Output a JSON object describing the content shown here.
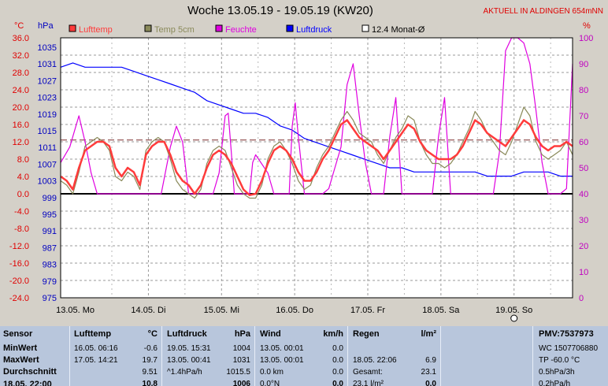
{
  "title": "Woche 13.05.19 - 19.05.19 (KW20)",
  "station": "AKTUELL IN ALDINGEN 654mNN",
  "axis_units": {
    "left_temp": "°C",
    "left_pressure": "hPa",
    "right_humidity": "%"
  },
  "legend": [
    {
      "label": "Lufttemp",
      "color": "#ff3b3b"
    },
    {
      "label": "Temp 5cm",
      "color": "#8a8a5a"
    },
    {
      "label": "Feuchte",
      "color": "#e000e0"
    },
    {
      "label": "Luftdruck",
      "color": "#0000ff"
    },
    {
      "label": "12.4 Monat-Ø",
      "color": "#ffffff"
    }
  ],
  "chart_data": {
    "type": "line",
    "title": "Woche 13.05.19 - 19.05.19 (KW20)",
    "x_ticks": [
      "13.05. Mo",
      "14.05. Di",
      "15.05. Mi",
      "16.05. Do",
      "17.05. Fr",
      "18.05. Sa",
      "19.05. So"
    ],
    "x_range_hours": [
      0,
      168
    ],
    "temp_ticks": [
      "36.0",
      "32.0",
      "28.0",
      "24.0",
      "20.0",
      "16.0",
      "12.0",
      "8.0",
      "4.0",
      "0.0",
      "-4.0",
      "-8.0",
      "-12.0",
      "-16.0",
      "-20.0",
      "-24.0"
    ],
    "pressure_ticks": [
      "1035",
      "1031",
      "1027",
      "1023",
      "1019",
      "1015",
      "1011",
      "1007",
      "1003",
      "999",
      "995",
      "991",
      "987",
      "983",
      "979",
      "975"
    ],
    "humidity_ticks": [
      "100",
      "90",
      "80",
      "70",
      "60",
      "50",
      "40",
      "30",
      "20",
      "10",
      "0"
    ],
    "temp_range": [
      -24,
      36
    ],
    "pressure_range": [
      975,
      1037
    ],
    "humidity_range": [
      0,
      100
    ],
    "reference_line": {
      "name": "12.4 Monat-Ø",
      "value": 12.4
    },
    "series": [
      {
        "name": "Luftdruck",
        "color": "#0000ff",
        "axis": "pressure",
        "x": [
          0,
          4,
          8,
          12,
          16,
          20,
          24,
          28,
          32,
          36,
          40,
          44,
          48,
          52,
          56,
          60,
          64,
          68,
          72,
          76,
          80,
          84,
          88,
          92,
          96,
          100,
          104,
          108,
          112,
          116,
          120,
          124,
          128,
          132,
          136,
          140,
          144,
          148,
          152,
          156,
          160,
          164,
          168
        ],
        "y": [
          1030,
          1031,
          1030,
          1030,
          1030,
          1030,
          1029,
          1028,
          1027,
          1026,
          1025,
          1024,
          1022,
          1021,
          1020,
          1019,
          1019,
          1018,
          1016,
          1015,
          1013,
          1012,
          1011,
          1010,
          1009,
          1008,
          1007,
          1006,
          1006,
          1005,
          1005,
          1005,
          1005,
          1005,
          1005,
          1004,
          1004,
          1004,
          1005,
          1005,
          1005,
          1004,
          1004
        ]
      },
      {
        "name": "Feuchte",
        "color": "#e000e0",
        "axis": "humidity",
        "x": [
          0,
          3,
          6,
          8,
          10,
          12,
          14,
          24,
          30,
          33,
          36,
          38,
          40,
          42,
          48,
          50,
          52,
          54,
          55,
          56,
          57,
          58,
          60,
          61,
          62,
          63,
          64,
          68,
          70,
          72,
          74,
          75,
          76,
          77,
          78,
          80,
          82,
          84,
          86,
          88,
          90,
          92,
          94,
          96,
          98,
          100,
          102,
          104,
          106,
          108,
          110,
          112,
          114,
          116,
          118,
          120,
          122,
          124,
          126,
          128,
          130,
          132,
          134,
          136,
          138,
          140,
          142,
          144,
          146,
          148,
          150,
          152,
          154,
          156,
          158,
          160,
          162,
          164,
          166,
          168
        ],
        "y": [
          52,
          58,
          70,
          60,
          48,
          40,
          40,
          40,
          40,
          40,
          58,
          66,
          60,
          40,
          40,
          40,
          48,
          70,
          71,
          56,
          40,
          40,
          40,
          40,
          40,
          52,
          55,
          48,
          40,
          40,
          40,
          40,
          66,
          75,
          62,
          40,
          40,
          40,
          40,
          42,
          50,
          58,
          82,
          90,
          70,
          52,
          40,
          40,
          40,
          62,
          77,
          40,
          40,
          40,
          40,
          40,
          40,
          62,
          77,
          40,
          40,
          40,
          40,
          40,
          40,
          40,
          40,
          56,
          95,
          100,
          100,
          98,
          90,
          72,
          52,
          40,
          40,
          40,
          42,
          90
        ]
      },
      {
        "name": "Lufttemp",
        "color": "#ff3b3b",
        "axis": "temp",
        "x": [
          0,
          2,
          4,
          6,
          8,
          10,
          12,
          14,
          16,
          18,
          20,
          22,
          24,
          26,
          28,
          30,
          32,
          34,
          36,
          38,
          40,
          42,
          44,
          46,
          48,
          50,
          52,
          54,
          56,
          58,
          60,
          62,
          64,
          66,
          68,
          70,
          72,
          74,
          76,
          78,
          80,
          82,
          84,
          86,
          88,
          90,
          92,
          94,
          96,
          98,
          100,
          102,
          104,
          106,
          108,
          110,
          112,
          114,
          116,
          118,
          120,
          122,
          124,
          126,
          128,
          130,
          132,
          134,
          136,
          138,
          140,
          142,
          144,
          146,
          148,
          150,
          152,
          154,
          156,
          158,
          160,
          162,
          164,
          166,
          168
        ],
        "y": [
          4,
          3,
          1,
          6,
          10,
          11,
          12,
          12,
          11,
          6,
          4,
          6,
          5,
          2,
          9,
          11,
          12,
          12,
          9,
          5,
          3,
          2,
          0,
          2,
          6,
          9,
          10,
          9,
          7,
          4,
          1,
          -0.3,
          0,
          3,
          7,
          10,
          11,
          10,
          8,
          5,
          3,
          3,
          5,
          8,
          10,
          13,
          16,
          17,
          15,
          13,
          12,
          11,
          10,
          8,
          10,
          12,
          14,
          16,
          15,
          12,
          10,
          9,
          8,
          8,
          8,
          9,
          11,
          14,
          17,
          16,
          14,
          13,
          12,
          11,
          13,
          15,
          17,
          16,
          13,
          11,
          10,
          11,
          11,
          12,
          11
        ]
      },
      {
        "name": "Temp 5cm",
        "color": "#8a8a5a",
        "axis": "temp",
        "x": [
          0,
          2,
          4,
          6,
          8,
          10,
          12,
          14,
          16,
          18,
          20,
          22,
          24,
          26,
          28,
          30,
          32,
          34,
          36,
          38,
          40,
          42,
          44,
          46,
          48,
          50,
          52,
          54,
          56,
          58,
          60,
          62,
          64,
          66,
          68,
          70,
          72,
          74,
          76,
          78,
          80,
          82,
          84,
          86,
          88,
          90,
          92,
          94,
          96,
          98,
          100,
          102,
          104,
          106,
          108,
          110,
          112,
          114,
          116,
          118,
          120,
          122,
          124,
          126,
          128,
          130,
          132,
          134,
          136,
          138,
          140,
          142,
          144,
          146,
          148,
          150,
          152,
          154,
          156,
          158,
          160,
          162,
          164,
          166,
          168
        ],
        "y": [
          3,
          2,
          0,
          5,
          11,
          12,
          13,
          12,
          10,
          4,
          3,
          5,
          4,
          1,
          10,
          12,
          13,
          12,
          8,
          3,
          1,
          0,
          -1,
          1,
          7,
          10,
          11,
          10,
          6,
          2,
          0,
          -1,
          -1,
          2,
          8,
          11,
          12,
          10,
          7,
          3,
          1,
          2,
          6,
          9,
          11,
          14,
          17,
          19,
          17,
          14,
          13,
          12,
          9,
          7,
          10,
          13,
          15,
          18,
          17,
          12,
          9,
          7,
          7,
          6,
          7,
          9,
          12,
          15,
          19,
          17,
          14,
          12,
          10,
          9,
          12,
          16,
          20,
          18,
          12,
          9,
          8,
          9,
          10,
          12,
          9
        ]
      }
    ]
  },
  "stats": {
    "sensor": {
      "title": "Sensor",
      "rows": [
        "MinWert",
        "MaxWert",
        "Durchschnitt",
        "18.05. 22:00"
      ]
    },
    "temp": {
      "title": "Lufttemp",
      "unit": "°C",
      "rows": [
        [
          "16.05.  06:16",
          "-0.6"
        ],
        [
          "17.05.  14:21",
          "19.7"
        ],
        [
          "",
          "9.51"
        ],
        [
          "",
          "10.8"
        ]
      ]
    },
    "pressure": {
      "title": "Luftdruck",
      "unit": "hPa",
      "rows": [
        [
          "19.05.  15:31",
          "1004"
        ],
        [
          "13.05.  00:41",
          "1031"
        ],
        [
          "^1.4hPa/h",
          "1015.5"
        ],
        [
          "",
          "1006"
        ]
      ]
    },
    "wind": {
      "title": "Wind",
      "unit": "km/h",
      "rows": [
        [
          "13.05.  00:01",
          "0.0"
        ],
        [
          "13.05.  00:01",
          "0.0"
        ],
        [
          "0.0 km",
          "0.0"
        ],
        [
          "0.0°N",
          "0.0"
        ]
      ]
    },
    "rain": {
      "title": "Regen",
      "unit": "l/m²",
      "rows": [
        [
          "",
          ""
        ],
        [
          "18.05.  22:06",
          "6.9"
        ],
        [
          "Gesamt:",
          "23.1"
        ],
        [
          "23.1 l/m²",
          "0.0"
        ]
      ]
    },
    "pmv": {
      "title": "PMV:7537973",
      "rows": [
        "WC 1507706880",
        "TP -60.0 °C",
        "0.5hPa/3h",
        "0.2hPa/h"
      ]
    }
  }
}
